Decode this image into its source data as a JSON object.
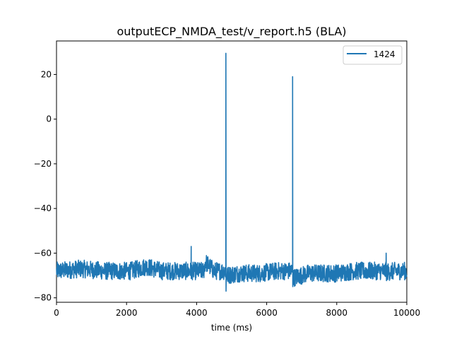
{
  "chart_data": {
    "type": "line",
    "title": "outputECP_NMDA_test/v_report.h5 (BLA)",
    "xlabel": "time (ms)",
    "ylabel": "",
    "xlim": [
      0,
      10000
    ],
    "ylim": [
      -82,
      35
    ],
    "xticks": [
      0,
      2000,
      4000,
      6000,
      8000,
      10000
    ],
    "xtick_labels": [
      "0",
      "2000",
      "4000",
      "6000",
      "8000",
      "10000"
    ],
    "yticks": [
      -80,
      -60,
      -40,
      -20,
      0,
      20
    ],
    "ytick_labels": [
      "−80",
      "−60",
      "−40",
      "−20",
      "0",
      "20"
    ],
    "grid": false,
    "legend_position": "top-right",
    "series": [
      {
        "name": "1424",
        "color": "#1f77b4",
        "baseline": -68.5,
        "noise_amplitude": 4,
        "x": [
          0,
          700,
          1400,
          2100,
          2560,
          3000,
          3500,
          3840,
          3845,
          3850,
          4200,
          4250,
          4500,
          4830,
          4835,
          4840,
          4850,
          5200,
          5800,
          6300,
          6735,
          6740,
          6745,
          6760,
          7200,
          8000,
          8500,
          9000,
          9400,
          9410,
          9700,
          10000
        ],
        "y": [
          -68,
          -67,
          -68,
          -68,
          -66,
          -68,
          -68,
          -68,
          -57,
          -68,
          -68,
          -64,
          -68,
          -68,
          29.5,
          -77,
          -70,
          -69,
          -69,
          -68,
          -68,
          19,
          -75,
          -71,
          -69,
          -69,
          -68,
          -68,
          -68,
          -60,
          -68,
          -68
        ]
      }
    ]
  }
}
